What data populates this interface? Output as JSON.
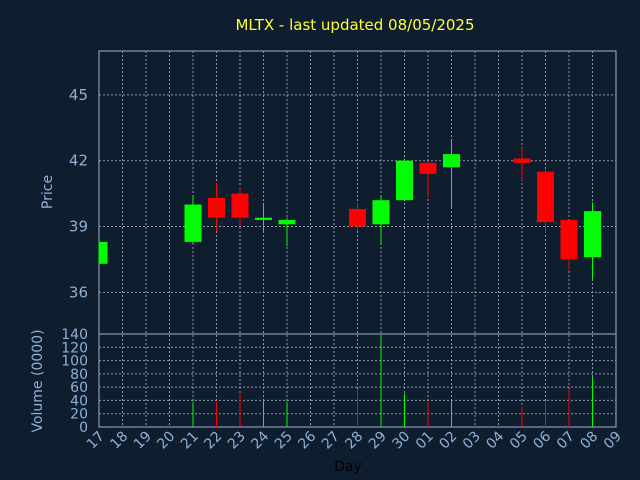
{
  "chart_data": {
    "type": "candlestick",
    "title": "MLTX - last updated 08/05/2025",
    "xlabel": "Day",
    "ylabel_price": "Price",
    "ylabel_volume": "Volume (0000)",
    "price_ticks": [
      36,
      39,
      42,
      45
    ],
    "volume_ticks": [
      0,
      20,
      40,
      60,
      80,
      100,
      120,
      140
    ],
    "price_ylim": [
      34.1,
      47.0
    ],
    "volume_ylim": [
      0,
      140
    ],
    "grid": true,
    "colors": {
      "up": "#00ff00",
      "down": "#ff0000",
      "title": "#ffff33",
      "grid": "#8a9aad"
    },
    "x_labels": [
      "17",
      "18",
      "19",
      "20",
      "21",
      "22",
      "23",
      "24",
      "25",
      "26",
      "27",
      "28",
      "29",
      "30",
      "01",
      "02",
      "03",
      "04",
      "05",
      "06",
      "07",
      "08",
      "09"
    ],
    "candles": [
      {
        "day": "17",
        "open": 37.3,
        "close": 38.3,
        "high": 38.3,
        "low": 37.3,
        "volume": 0
      },
      {
        "day": "21",
        "open": 38.3,
        "close": 40.0,
        "high": 40.4,
        "low": 38.2,
        "volume": 38
      },
      {
        "day": "22",
        "open": 40.3,
        "close": 39.4,
        "high": 41.0,
        "low": 38.8,
        "volume": 38
      },
      {
        "day": "23",
        "open": 40.5,
        "close": 39.4,
        "high": 40.8,
        "low": 39.0,
        "volume": 50
      },
      {
        "day": "24",
        "open": 39.3,
        "close": 39.4,
        "high": 40.0,
        "low": 38.8,
        "volume": 40
      },
      {
        "day": "25",
        "open": 39.1,
        "close": 39.3,
        "high": 39.4,
        "low": 38.1,
        "volume": 38
      },
      {
        "day": "28",
        "open": 39.8,
        "close": 39.0,
        "high": 40.1,
        "low": 38.8,
        "volume": 57
      },
      {
        "day": "29",
        "open": 39.1,
        "close": 40.2,
        "high": 40.4,
        "low": 38.2,
        "volume": 135
      },
      {
        "day": "30",
        "open": 40.2,
        "close": 42.0,
        "high": 42.1,
        "low": 40.2,
        "volume": 50
      },
      {
        "day": "01",
        "open": 41.9,
        "close": 41.4,
        "high": 42.0,
        "low": 40.3,
        "volume": 38
      },
      {
        "day": "02",
        "open": 41.7,
        "close": 42.3,
        "high": 42.9,
        "low": 39.8,
        "volume": 40
      },
      {
        "day": "05",
        "open": 42.1,
        "close": 41.9,
        "high": 42.6,
        "low": 41.1,
        "volume": 30
      },
      {
        "day": "06",
        "open": 41.5,
        "close": 39.2,
        "high": 41.6,
        "low": 38.7,
        "volume": 38
      },
      {
        "day": "07",
        "open": 39.3,
        "close": 37.5,
        "high": 39.3,
        "low": 37.0,
        "volume": 58
      },
      {
        "day": "08",
        "open": 37.6,
        "close": 39.7,
        "high": 40.1,
        "low": 36.6,
        "volume": 75
      }
    ]
  }
}
